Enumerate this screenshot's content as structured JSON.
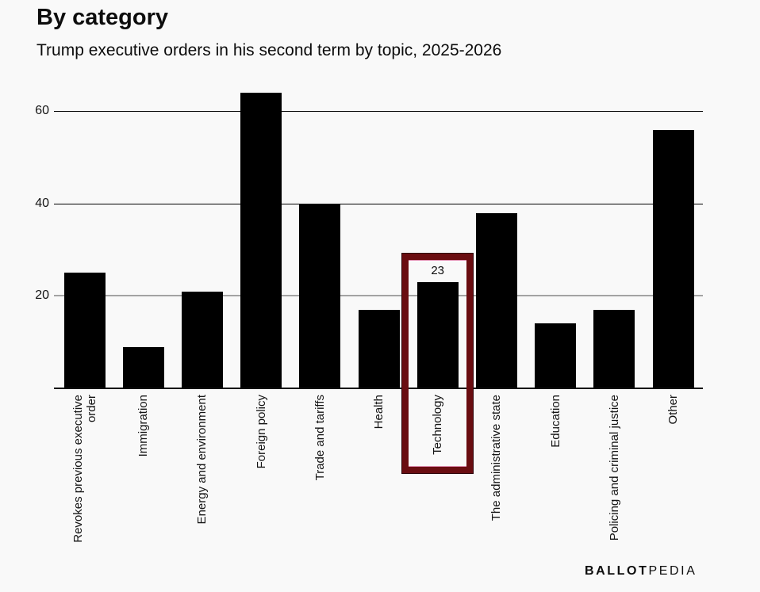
{
  "header": {
    "title": "By category",
    "subtitle": "Trump executive orders in his second term by topic, 2025-2026"
  },
  "footer": {
    "brand_bold": "BALLOT",
    "brand_light": "PEDIA"
  },
  "colors": {
    "background": "#f9f9f9",
    "bar": "#000000",
    "gridline_major": "#000000",
    "gridline_20": "#a3a3a3",
    "axis_line": "#0d0d0d",
    "text": "#141414",
    "highlight_border": "#6a0d11",
    "highlight_inner_line": "#e08fb1"
  },
  "chart_data": {
    "type": "bar",
    "title": "By category",
    "subtitle": "Trump executive orders in his second term by topic, 2025-2026",
    "categories": [
      "Revokes previous executive order",
      "Immigration",
      "Energy and environment",
      "Foreign policy",
      "Trade and tariffs",
      "Health",
      "Technology",
      "The administrative state",
      "Education",
      "Policing and criminal justice",
      "Other"
    ],
    "values": [
      25,
      9,
      21,
      64,
      40,
      17,
      23,
      38,
      14,
      17,
      56
    ],
    "xlabel_lines": [
      [
        "Revokes previous executive",
        "order"
      ],
      [
        "Immigration"
      ],
      [
        "Energy and environment"
      ],
      [
        "Foreign policy"
      ],
      [
        "Trade and tariffs"
      ],
      [
        "Health"
      ],
      [
        "Technology"
      ],
      [
        "The administrative state"
      ],
      [
        "Education"
      ],
      [
        "Policing and criminal justice"
      ],
      [
        "Other"
      ]
    ],
    "xlabel": "",
    "ylabel": "",
    "ylim": [
      0,
      65
    ],
    "yticks": [
      20,
      40,
      60
    ],
    "grid": "horizontal",
    "legend": "none",
    "bar_color": "#000000",
    "highlight": {
      "category": "Technology",
      "index": 6,
      "value_label": "23",
      "style": "thick dark-red rectangle outline around the bar and its axis label"
    }
  }
}
